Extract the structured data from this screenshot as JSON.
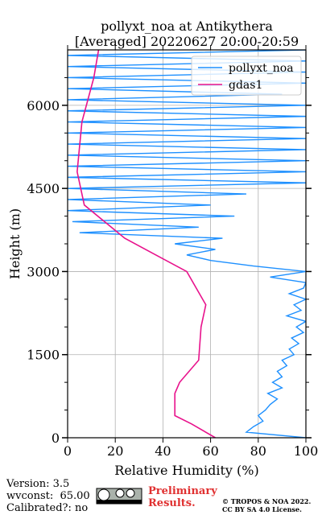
{
  "chart_data": {
    "type": "line",
    "title": "pollyxt_noa at Antikythera",
    "subtitle": "[Averaged] 20220627 20:00-20:59",
    "x_label": "Relative Humidity (%)",
    "y_label": "Height (m)",
    "xlim": [
      0,
      100
    ],
    "ylim": [
      0,
      7000
    ],
    "xticks": [
      0,
      20,
      40,
      60,
      80,
      100
    ],
    "yticks": [
      0,
      1500,
      3000,
      4500,
      6000
    ],
    "yminorticks": [
      500,
      1000,
      2000,
      2500,
      3500,
      4000,
      5000,
      5500,
      6500
    ],
    "grid": true,
    "legend": "upper right",
    "series": [
      {
        "name": "pollyxt_noa",
        "color": "#1e90ff",
        "heights": [
          0,
          100,
          200,
          300,
          400,
          500,
          600,
          700,
          800,
          900,
          1000,
          1100,
          1200,
          1300,
          1400,
          1500,
          1600,
          1700,
          1800,
          1900,
          2000,
          2100,
          2200,
          2300,
          2400,
          2500,
          2600,
          2700,
          2800,
          2900,
          3000,
          3100,
          3200,
          3300,
          3400,
          3500,
          3600,
          3700,
          3800,
          3900,
          4000,
          4100,
          4200,
          4300,
          4400,
          4500,
          4600,
          4700,
          4800,
          4900,
          5000,
          5100,
          5200,
          5300,
          5400,
          5500,
          5600,
          5700,
          5800,
          5900,
          6000,
          6100,
          6200,
          6300,
          6400,
          6500,
          6600,
          6700,
          6800,
          6900,
          7000
        ],
        "values": [
          100,
          75,
          78,
          82,
          80,
          83,
          85,
          88,
          84,
          90,
          86,
          90,
          88,
          92,
          90,
          95,
          93,
          97,
          94,
          99,
          96,
          100,
          92,
          98,
          95,
          100,
          93,
          99,
          100,
          85,
          100,
          78,
          60,
          50,
          62,
          45,
          65,
          5,
          55,
          2,
          70,
          0,
          60,
          0,
          75,
          0,
          100,
          0,
          100,
          0,
          100,
          0,
          100,
          0,
          100,
          0,
          100,
          0,
          100,
          0,
          100,
          0,
          90,
          0,
          100,
          0,
          100,
          0,
          100,
          0,
          100
        ]
      },
      {
        "name": "gdas1",
        "color": "#e8128c",
        "heights": [
          0,
          250,
          400,
          800,
          1000,
          1400,
          2000,
          2400,
          3000,
          3300,
          3600,
          4200,
          4800,
          5700,
          6500,
          7000
        ],
        "values": [
          62,
          52,
          45,
          45,
          47,
          55,
          56,
          58,
          50,
          37,
          24,
          7,
          4,
          6,
          11,
          13
        ]
      }
    ]
  },
  "footer": {
    "version": "Version: 3.5",
    "wvconst": "wvconst:  65.00",
    "calibrated": "Calibrated?: no",
    "preliminary": "Preliminary Results.",
    "copyright": "© TROPOS & NOA 2022.",
    "license": "CC BY SA 4.0 License."
  }
}
